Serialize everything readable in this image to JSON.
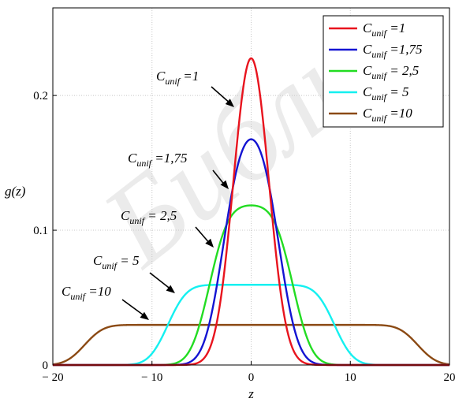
{
  "chart_data": {
    "type": "line",
    "xlabel": "z",
    "ylabel": "g(z)",
    "xlim": [
      -20,
      20
    ],
    "ylim": [
      0,
      0.265
    ],
    "x_ticks": [
      -20,
      -10,
      0,
      10,
      20
    ],
    "x_tick_labels": [
      "− 20",
      "− 10",
      "0",
      "10",
      "20"
    ],
    "y_ticks": [
      0,
      0.1,
      0.2
    ],
    "y_tick_labels": [
      "0",
      "0.1",
      "0.2"
    ],
    "grid": true,
    "legend_position": "top-right",
    "series": [
      {
        "name": "C_unif = 1",
        "label_main": "C",
        "label_sub": "unif",
        "label_value": " =1",
        "color": "#e8141e",
        "param": 1
      },
      {
        "name": "C_unif = 1,75",
        "label_main": "C",
        "label_sub": "unif",
        "label_value": " =1,75",
        "color": "#1414d2",
        "param": 1.75
      },
      {
        "name": "C_unif = 2,5",
        "label_main": "C",
        "label_sub": "unif",
        "label_value": " = 2,5",
        "color": "#22dc22",
        "param": 2.5
      },
      {
        "name": "C_unif = 5",
        "label_main": "C",
        "label_sub": "unif",
        "label_value": " = 5",
        "color": "#14f0f0",
        "param": 5
      },
      {
        "name": "C_unif = 10",
        "label_main": "C",
        "label_sub": "unif",
        "label_value": " =10",
        "color": "#8b4a14",
        "param": 10
      }
    ],
    "annotations": [
      {
        "series": 0,
        "main": "C",
        "sub": "unif",
        "value": " =1"
      },
      {
        "series": 1,
        "main": "C",
        "sub": "unif",
        "value": " =1,75"
      },
      {
        "series": 2,
        "main": "C",
        "sub": "unif",
        "value": " = 2,5"
      },
      {
        "series": 3,
        "main": "C",
        "sub": "unif",
        "value": " = 5"
      },
      {
        "series": 4,
        "main": "C",
        "sub": "unif",
        "value": " =10"
      }
    ],
    "watermark": "Библио"
  }
}
